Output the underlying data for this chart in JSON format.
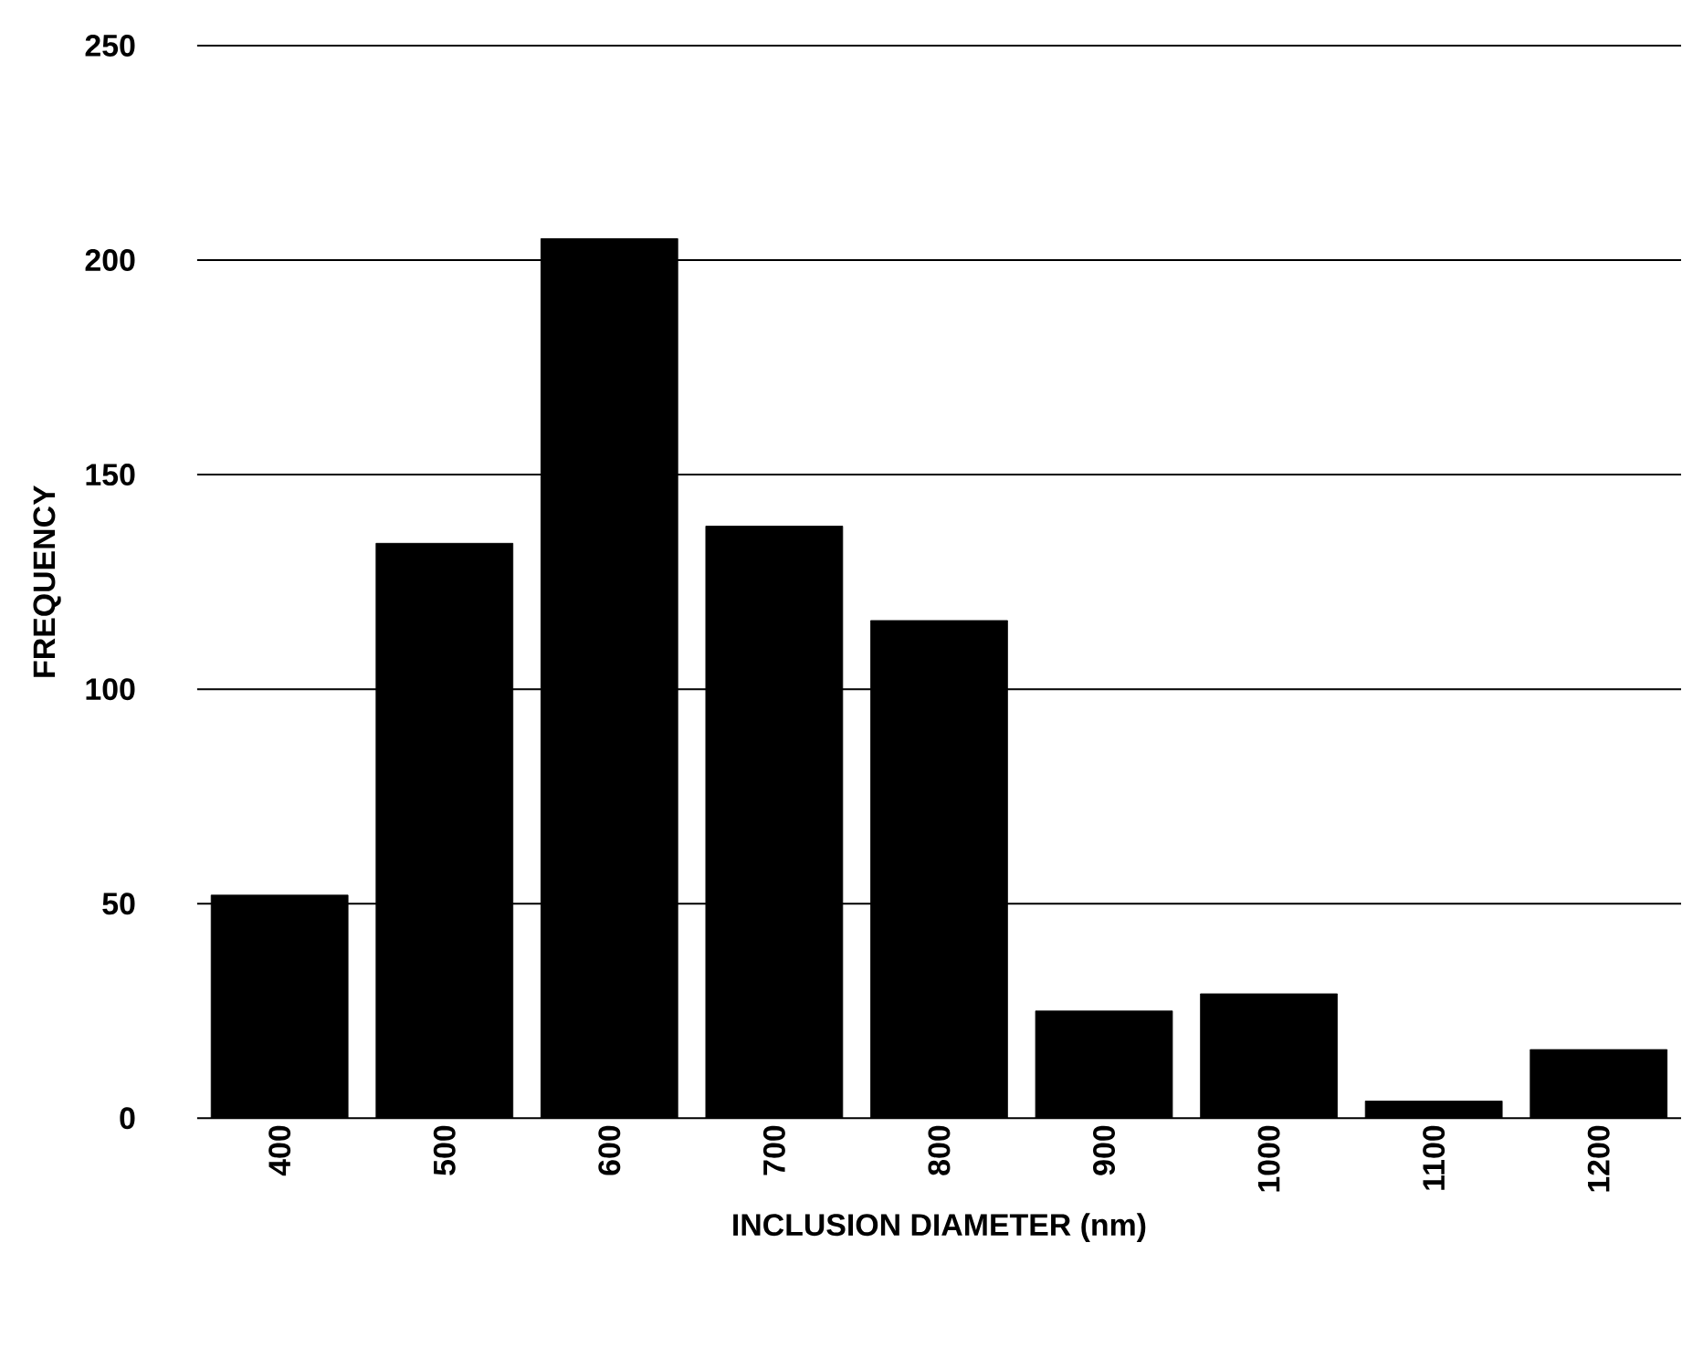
{
  "chart_data": {
    "type": "bar",
    "xlabel": "INCLUSION DIAMETER (nm)",
    "ylabel": "FREQUENCY",
    "categories": [
      "400",
      "500",
      "600",
      "700",
      "800",
      "900",
      "1000",
      "1100",
      "1200"
    ],
    "values": [
      52,
      134,
      205,
      138,
      116,
      25,
      29,
      4,
      16
    ],
    "color": "#000000",
    "ylim": [
      0,
      250
    ],
    "yticks": [
      0,
      50,
      100,
      150,
      200,
      250
    ],
    "grid": "y"
  }
}
